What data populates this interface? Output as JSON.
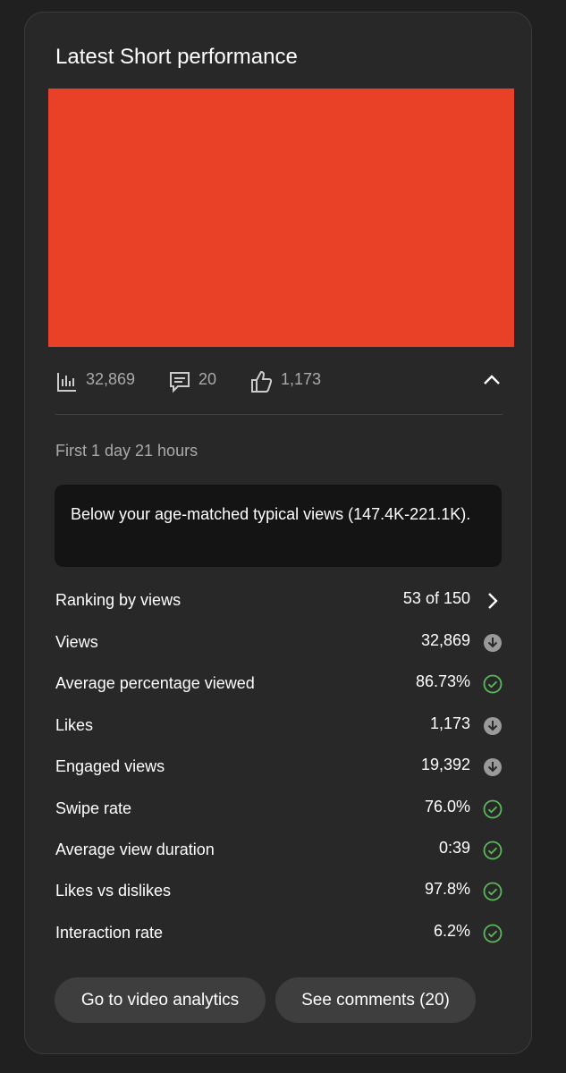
{
  "header": {
    "title": "Latest Short performance"
  },
  "stats": {
    "views": "32,869",
    "comments": "20",
    "likes": "1,173"
  },
  "period": "First 1 day 21 hours",
  "notice": "Below your age-matched typical views (147.4K-221.1K).",
  "metrics": [
    {
      "label": "Ranking by views",
      "value": "53 of 150"
    },
    {
      "label": "Views",
      "value": "32,869"
    },
    {
      "label": "Average percentage viewed",
      "value": "86.73%"
    },
    {
      "label": "Likes",
      "value": "1,173"
    },
    {
      "label": "Engaged views",
      "value": "19,392"
    },
    {
      "label": "Swipe rate",
      "value": "76.0%"
    },
    {
      "label": "Average view duration",
      "value": "0:39"
    },
    {
      "label": "Likes vs dislikes",
      "value": "97.8%"
    },
    {
      "label": "Interaction rate",
      "value": "6.2%"
    }
  ],
  "buttons": [
    "Go to video analytics",
    "See comments (20)"
  ]
}
